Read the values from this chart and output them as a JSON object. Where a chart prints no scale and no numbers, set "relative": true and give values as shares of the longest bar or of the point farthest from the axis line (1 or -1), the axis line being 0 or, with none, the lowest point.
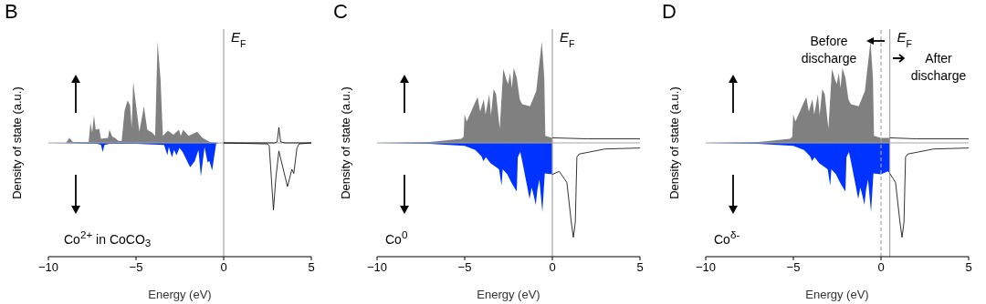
{
  "chart_data": [
    {
      "type": "area",
      "title": "B",
      "xlabel": "Energy (eV)",
      "ylabel": "Density of state (a.u.)",
      "relative": true,
      "xlim": [
        -10,
        5
      ],
      "ref_lines": [
        {
          "axis": "y",
          "value": 0,
          "color": "#a6a6a6",
          "line_style": "solid"
        },
        {
          "axis": "x",
          "value": 0,
          "label": "E$_{F}$",
          "color": "#a6a6a6",
          "line_style": "solid"
        }
      ],
      "annotations": [
        "Co$^{2+}$ in CoCO$_{3}$"
      ],
      "xticks": [
        -10,
        -5,
        0,
        5
      ],
      "series": [
        {
          "type": "area",
          "color": "#808080",
          "x": [
            -10,
            -9,
            -8.8,
            -8.6,
            -7.7,
            -7.6,
            -7.5,
            -7.4,
            -7.3,
            -7.1,
            -7.0,
            -6.6,
            -6.52,
            -6.35,
            -6.2,
            -6.0,
            -5.82,
            -5.65,
            -5.48,
            -5.34,
            -5.25,
            -5.16,
            -5.02,
            -4.81,
            -4.55,
            -4.36,
            -4.08,
            -3.91,
            -3.77,
            -3.6,
            -3.47,
            -3.18,
            -2.87,
            -2.55,
            -2.45,
            -2.31,
            -2.0,
            -1.51,
            -1.21,
            -0.78,
            -0.26,
            0
          ],
          "values": [
            0,
            0,
            0.05,
            0.01,
            0.01,
            0.2,
            0.1,
            0.27,
            0.13,
            0.14,
            0.04,
            0.05,
            0.13,
            0.06,
            0.05,
            0.02,
            0.02,
            0.32,
            0.42,
            0.37,
            0.15,
            0.6,
            0.4,
            0.11,
            0.36,
            0.13,
            0.1,
            0.07,
            1,
            0.62,
            0.07,
            0.12,
            0.08,
            0.13,
            0.07,
            0.13,
            0.07,
            0.11,
            0.05,
            0.01,
            0,
            0
          ]
        },
        {
          "type": "line",
          "color": "#000000",
          "x": [
            0,
            2.9,
            3.05,
            3.15,
            3.25,
            3.5,
            5
          ],
          "values": [
            0,
            0,
            0.01,
            0.15,
            0.01,
            0,
            0
          ]
        },
        {
          "type": "area",
          "color": "#0033ff",
          "x": [
            -10,
            -7.2,
            -7.0,
            -6.9,
            -6.8,
            -6.5,
            -5,
            -3.4,
            -3.21,
            -3.13,
            -2.95,
            -2.83,
            -2.69,
            -2.52,
            -2.34,
            -1.91,
            -1.65,
            -1.44,
            -1.3,
            -1.09,
            -0.92,
            -0.81,
            -0.66,
            -0.43,
            -0.3,
            0
          ],
          "values": [
            0,
            -0.01,
            -0.02,
            -0.09,
            -0.02,
            -0.01,
            -0.01,
            -0.02,
            -0.12,
            -0.04,
            -0.14,
            -0.07,
            -0.12,
            -0.05,
            -0.09,
            -0.24,
            -0.18,
            -0.07,
            -0.33,
            -0.04,
            -0.19,
            -0.18,
            -0.27,
            -0.01,
            0,
            0
          ]
        },
        {
          "type": "line",
          "color": "#000000",
          "x": [
            0,
            2.5,
            2.6,
            2.84,
            2.98,
            3.15,
            3.64,
            3.89,
            4.0,
            4.18,
            4.3,
            5
          ],
          "values": [
            0,
            -0.01,
            -0.03,
            -0.66,
            -0.34,
            -0.08,
            -0.43,
            -0.26,
            -0.3,
            -0.05,
            -0.01,
            0
          ]
        }
      ]
    },
    {
      "type": "area",
      "title": "C",
      "xlabel": "Energy (eV)",
      "ylabel": "Density of state (a.u.)",
      "relative": true,
      "xlim": [
        -10,
        5
      ],
      "ref_lines": [
        {
          "axis": "y",
          "value": 0,
          "color": "#a6a6a6",
          "line_style": "solid"
        },
        {
          "axis": "x",
          "value": 0,
          "label": "E$_{F}$",
          "color": "#a6a6a6",
          "line_style": "solid"
        }
      ],
      "annotations": [
        "Co$^{0}$"
      ],
      "xticks": [
        -10,
        -5,
        0,
        5
      ],
      "series": [
        {
          "type": "area",
          "color": "#808080",
          "x": [
            -10,
            -7,
            -5.2,
            -5.06,
            -5.01,
            -4.88,
            -4.4,
            -4.26,
            -4.12,
            -3.91,
            -3.81,
            -3.6,
            -3.5,
            -3.35,
            -3.21,
            -3.0,
            -2.8,
            -2.62,
            -2.52,
            -2.41,
            -2.31,
            -2.2,
            -2.03,
            -1.86,
            -1.72,
            -1.27,
            -0.92,
            -0.6,
            -0.46,
            -0.4,
            0
          ],
          "values": [
            0,
            0.01,
            0.04,
            0.06,
            0.28,
            0.21,
            0.4,
            0.45,
            0.31,
            0.43,
            0.28,
            0.48,
            0.27,
            0.53,
            0.48,
            0.14,
            0.73,
            0.62,
            0.58,
            0.69,
            0.54,
            0.74,
            0.64,
            0.43,
            0.38,
            0.36,
            0.51,
            1,
            0.64,
            0.07,
            0.05
          ]
        },
        {
          "type": "line",
          "color": "#000000",
          "x": [
            0,
            2,
            5
          ],
          "values": [
            0.05,
            0.04,
            0.04
          ]
        },
        {
          "type": "area",
          "color": "#0033ff",
          "x": [
            -10,
            -7,
            -5,
            -4.4,
            -4.05,
            -3.93,
            -3.79,
            -3.53,
            -3.27,
            -3.04,
            -2.9,
            -2.83,
            -2.57,
            -2.34,
            -2.03,
            -1.97,
            -1.83,
            -1.72,
            -1.48,
            -1.3,
            -1.18,
            -1.06,
            -0.95,
            -0.85,
            -0.74,
            -0.57,
            -0.43,
            0
          ],
          "values": [
            0,
            -0.01,
            -0.03,
            -0.07,
            -0.13,
            -0.18,
            -0.14,
            -0.2,
            -0.23,
            -0.26,
            -0.42,
            -0.26,
            -0.31,
            -0.39,
            -0.48,
            -0.14,
            -0.09,
            -0.18,
            -0.39,
            -0.55,
            -0.44,
            -0.52,
            -0.61,
            -0.46,
            -0.36,
            -0.68,
            -0.3,
            -0.31
          ]
        },
        {
          "type": "line",
          "color": "#000000",
          "x": [
            0,
            0.39,
            0.83,
            1.08,
            1.2,
            1.31,
            1.4,
            1.52,
            3,
            5
          ],
          "values": [
            -0.31,
            -0.28,
            -0.39,
            -0.78,
            -0.93,
            -0.78,
            -0.14,
            -0.11,
            -0.06,
            -0.05
          ]
        }
      ]
    },
    {
      "type": "area",
      "title": "D",
      "xlabel": "Energy (eV)",
      "ylabel": "Density of state (a.u.)",
      "relative": true,
      "xlim": [
        -10,
        5
      ],
      "ref_lines": [
        {
          "axis": "y",
          "value": 0,
          "color": "#a6a6a6",
          "line_style": "solid"
        },
        {
          "axis": "x",
          "value": 0,
          "color": "#a6a6a6",
          "line_style": "dashed"
        },
        {
          "axis": "x",
          "value": 0.5,
          "label": "E$_{F}$",
          "color": "#a6a6a6",
          "line_style": "solid"
        }
      ],
      "annotations": [
        "Co$^{δ-}$",
        "Before discharge",
        "After discharge"
      ],
      "xticks": [
        -10,
        -5,
        0,
        5
      ],
      "series": [
        {
          "type": "area",
          "color": "#808080",
          "x": [
            -10,
            -7,
            -5.2,
            -5.06,
            -5.01,
            -4.88,
            -4.4,
            -4.26,
            -4.12,
            -3.91,
            -3.81,
            -3.6,
            -3.5,
            -3.35,
            -3.21,
            -3.0,
            -2.8,
            -2.62,
            -2.52,
            -2.41,
            -2.31,
            -2.2,
            -2.03,
            -1.86,
            -1.72,
            -1.27,
            -0.92,
            -0.6,
            -0.46,
            -0.4,
            0,
            0.5
          ],
          "values": [
            0,
            0.01,
            0.04,
            0.06,
            0.28,
            0.21,
            0.4,
            0.45,
            0.31,
            0.43,
            0.28,
            0.48,
            0.27,
            0.53,
            0.48,
            0.14,
            0.73,
            0.62,
            0.58,
            0.69,
            0.54,
            0.74,
            0.64,
            0.43,
            0.38,
            0.36,
            0.51,
            1,
            0.64,
            0.07,
            0.05,
            0.05
          ]
        },
        {
          "type": "line",
          "color": "#000000",
          "x": [
            0.5,
            2,
            5
          ],
          "values": [
            0.05,
            0.04,
            0.04
          ]
        },
        {
          "type": "area",
          "color": "#0033ff",
          "x": [
            -10,
            -7,
            -5,
            -4.4,
            -4.05,
            -3.93,
            -3.79,
            -3.53,
            -3.27,
            -3.04,
            -2.9,
            -2.83,
            -2.57,
            -2.34,
            -2.03,
            -1.97,
            -1.83,
            -1.72,
            -1.48,
            -1.3,
            -1.18,
            -1.06,
            -0.95,
            -0.85,
            -0.74,
            -0.57,
            -0.43,
            0,
            0.39,
            0.5
          ],
          "values": [
            0,
            -0.01,
            -0.03,
            -0.07,
            -0.13,
            -0.18,
            -0.14,
            -0.2,
            -0.23,
            -0.26,
            -0.42,
            -0.26,
            -0.31,
            -0.39,
            -0.48,
            -0.14,
            -0.09,
            -0.18,
            -0.39,
            -0.55,
            -0.44,
            -0.52,
            -0.61,
            -0.46,
            -0.36,
            -0.68,
            -0.3,
            -0.31,
            -0.28,
            -0.3
          ]
        },
        {
          "type": "line",
          "color": "#000000",
          "x": [
            0.5,
            0.83,
            1.08,
            1.2,
            1.31,
            1.4,
            1.52,
            3,
            5
          ],
          "values": [
            -0.3,
            -0.39,
            -0.78,
            -0.93,
            -0.78,
            -0.14,
            -0.11,
            -0.06,
            -0.05
          ]
        }
      ]
    }
  ]
}
